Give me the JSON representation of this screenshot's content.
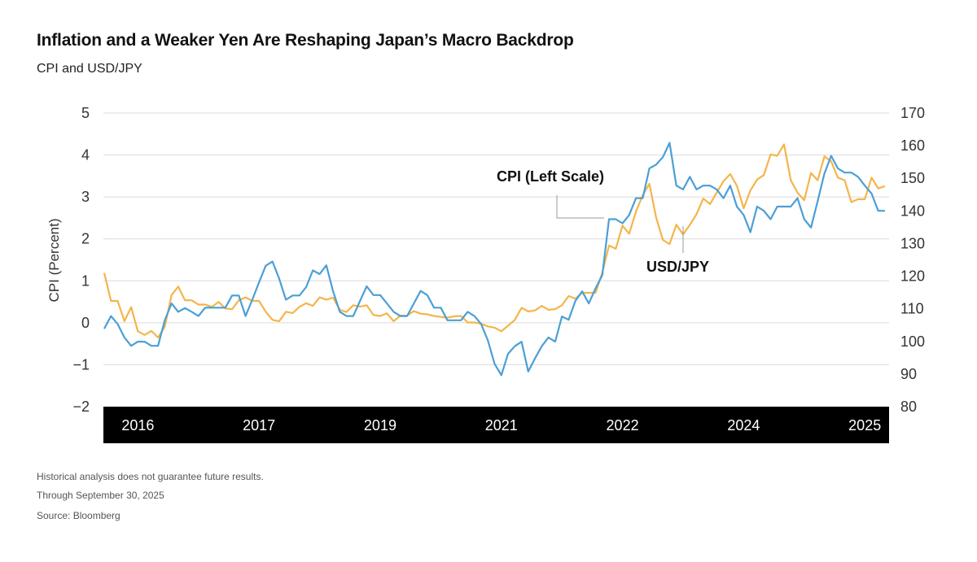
{
  "header": {
    "title": "Inflation and a Weaker Yen Are Reshaping Japan’s Macro Backdrop",
    "subtitle": "CPI and USD/JPY"
  },
  "footer": {
    "lines": [
      "Historical analysis does not guarantee future results.",
      "Through September 30, 2025",
      "Source: Bloomberg"
    ]
  },
  "chart_data": {
    "type": "line",
    "x_start": "2016-01",
    "x_end": "2025-09",
    "x_frequency": "monthly",
    "x_tick_labels": [
      "2016",
      "2017",
      "2019",
      "2021",
      "2022",
      "2024",
      "2025"
    ],
    "left_axis": {
      "label": "CPI (Percent)",
      "ylim": [
        -2,
        5
      ],
      "ticks": [
        "−2",
        "−1",
        "0",
        "1",
        "2",
        "3",
        "4",
        "5"
      ]
    },
    "right_axis": {
      "label": "",
      "ylim": [
        80,
        170
      ],
      "ticks": [
        "80",
        "90",
        "100",
        "110",
        "120",
        "130",
        "140",
        "150",
        "160",
        "170"
      ]
    },
    "grid": "horizontal",
    "annotations": [
      "CPI (Left Scale)",
      "USD/JPY"
    ],
    "colors": {
      "cpi": "#4b9fd5",
      "usdjpy": "#f4b54a"
    },
    "series": [
      {
        "name": "CPI (Left Scale)",
        "axis": "left",
        "values": [
          -0.14,
          0.16,
          -0.03,
          -0.35,
          -0.55,
          -0.45,
          -0.45,
          -0.55,
          -0.55,
          0.06,
          0.46,
          0.26,
          0.35,
          0.26,
          0.16,
          0.36,
          0.36,
          0.36,
          0.36,
          0.65,
          0.65,
          0.16,
          0.55,
          0.96,
          1.36,
          1.46,
          1.05,
          0.55,
          0.65,
          0.65,
          0.85,
          1.25,
          1.16,
          1.37,
          0.75,
          0.26,
          0.16,
          0.16,
          0.52,
          0.87,
          0.66,
          0.66,
          0.46,
          0.26,
          0.16,
          0.16,
          0.46,
          0.76,
          0.66,
          0.36,
          0.36,
          0.06,
          0.06,
          0.06,
          0.26,
          0.16,
          -0.03,
          -0.42,
          -0.98,
          -1.25,
          -0.74,
          -0.56,
          -0.45,
          -1.16,
          -0.85,
          -0.56,
          -0.35,
          -0.45,
          0.15,
          0.07,
          0.52,
          0.75,
          0.46,
          0.82,
          1.14,
          2.47,
          2.47,
          2.37,
          2.57,
          2.97,
          2.97,
          3.68,
          3.77,
          3.95,
          4.29,
          3.27,
          3.18,
          3.48,
          3.18,
          3.27,
          3.27,
          3.18,
          2.97,
          3.27,
          2.77,
          2.57,
          2.16,
          2.77,
          2.67,
          2.47,
          2.77,
          2.77,
          2.77,
          2.97,
          2.47,
          2.27,
          2.9,
          3.56,
          3.98,
          3.68,
          3.58,
          3.58,
          3.48,
          3.27,
          3.08,
          2.67,
          2.67
        ]
      },
      {
        "name": "USD/JPY",
        "axis": "right",
        "values": [
          121.0,
          112.4,
          112.4,
          106.2,
          110.5,
          103.1,
          102.0,
          103.2,
          101.2,
          104.5,
          114.2,
          116.8,
          112.6,
          112.6,
          111.3,
          111.3,
          110.6,
          112.1,
          110.1,
          109.9,
          112.6,
          113.5,
          112.4,
          112.4,
          109.1,
          106.6,
          106.2,
          109.1,
          108.7,
          110.6,
          111.7,
          110.9,
          113.5,
          112.8,
          113.4,
          109.7,
          109.0,
          111.1,
          110.7,
          111.1,
          108.1,
          107.8,
          108.6,
          106.2,
          107.9,
          107.9,
          109.3,
          108.5,
          108.3,
          107.8,
          107.5,
          107.3,
          107.7,
          107.8,
          105.8,
          105.8,
          105.4,
          104.6,
          104.2,
          103.1,
          104.8,
          106.6,
          110.3,
          109.2,
          109.5,
          110.9,
          109.7,
          109.9,
          111.1,
          113.9,
          113.1,
          114.9,
          114.9,
          114.9,
          121.1,
          129.4,
          128.4,
          135.5,
          133.0,
          139.8,
          144.8,
          148.3,
          138.0,
          131.1,
          129.8,
          135.8,
          132.8,
          135.7,
          139.0,
          143.8,
          142.1,
          145.6,
          149.1,
          151.3,
          147.7,
          140.8,
          146.3,
          149.6,
          151.0,
          157.3,
          156.9,
          160.4,
          149.4,
          145.6,
          143.3,
          151.6,
          149.4,
          156.7,
          155.2,
          150.2,
          149.4,
          142.7,
          143.6,
          143.6,
          150.2,
          146.9,
          147.6
        ]
      }
    ]
  }
}
